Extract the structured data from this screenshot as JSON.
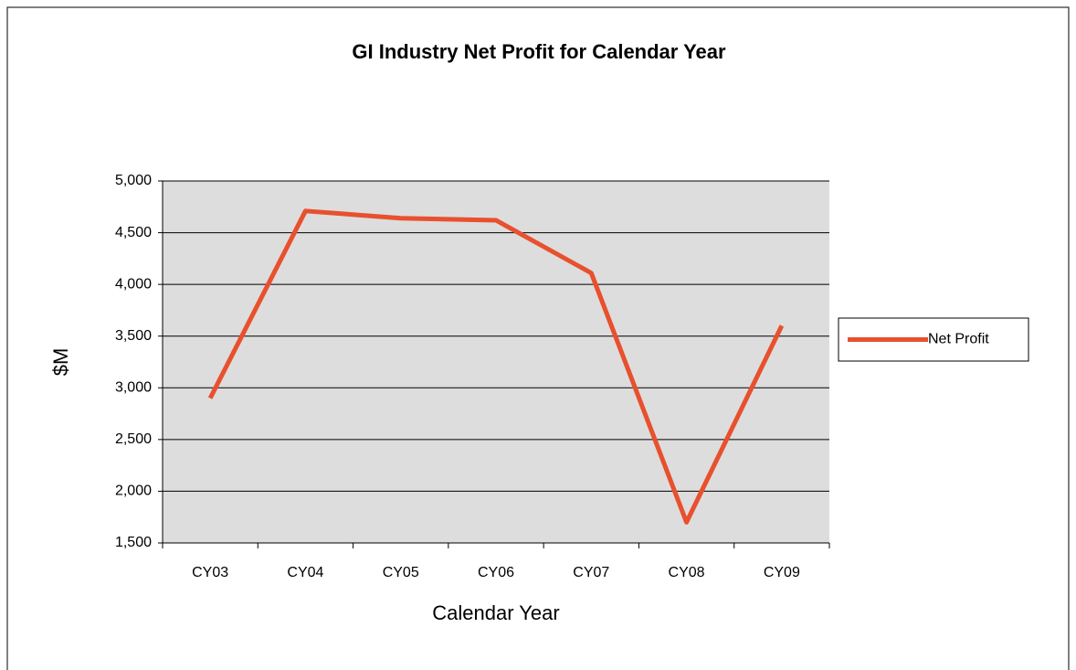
{
  "chart_data": {
    "type": "line",
    "title": "GI Industry Net Profit for Calendar Year",
    "x_label": "Calendar Year",
    "y_label": "$M",
    "categories": [
      "CY03",
      "CY04",
      "CY05",
      "CY06",
      "CY07",
      "CY08",
      "CY09"
    ],
    "series": [
      {
        "name": "Net Profit",
        "color": "#e8502e",
        "values": [
          2900,
          4710,
          4640,
          4620,
          4110,
          1700,
          3600
        ]
      }
    ],
    "ylim": [
      1500,
      5000
    ],
    "yticks": [
      {
        "value": 1500,
        "label": "1,500"
      },
      {
        "value": 2000,
        "label": "2,000"
      },
      {
        "value": 2500,
        "label": "2,500"
      },
      {
        "value": 3000,
        "label": "3,000"
      },
      {
        "value": 3500,
        "label": "3,500"
      },
      {
        "value": 4000,
        "label": "4,000"
      },
      {
        "value": 4500,
        "label": "4,500"
      },
      {
        "value": 5000,
        "label": "5,000"
      }
    ],
    "grid": true,
    "legend": "right"
  }
}
